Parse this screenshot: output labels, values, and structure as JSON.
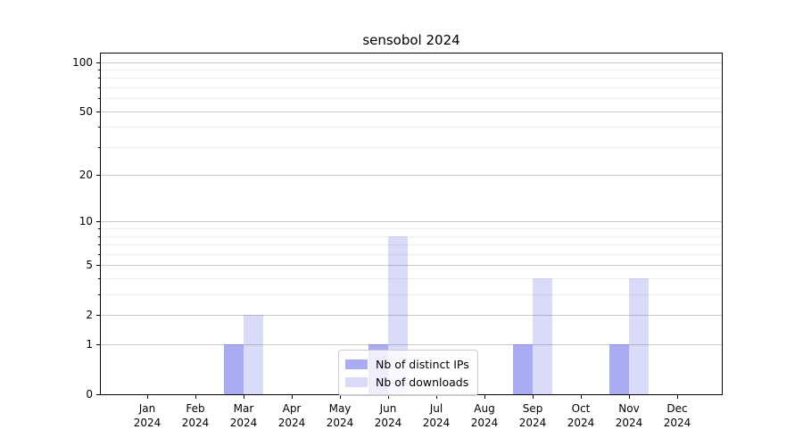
{
  "title": "sensobol 2024",
  "colors": {
    "bar_distinct_ips": "rgba(88,88,228,0.50)",
    "bar_downloads": "rgba(88,88,228,0.22)",
    "grid_major": "#c9c9c9",
    "grid_minor": "#ededed",
    "axis": "#000000",
    "legend_border": "#cccccc"
  },
  "chart_data": {
    "type": "bar",
    "title": "sensobol 2024",
    "xlabel": "",
    "ylabel": "",
    "yscale": "log1p",
    "ylim": [
      0,
      115
    ],
    "grid": "both",
    "legend_position": "lower center",
    "categories": [
      "Jan 2024",
      "Feb 2024",
      "Mar 2024",
      "Apr 2024",
      "May 2024",
      "Jun 2024",
      "Jul 2024",
      "Aug 2024",
      "Sep 2024",
      "Oct 2024",
      "Nov 2024",
      "Dec 2024"
    ],
    "x_tick_line1": [
      "Jan",
      "Feb",
      "Mar",
      "Apr",
      "May",
      "Jun",
      "Jul",
      "Aug",
      "Sep",
      "Oct",
      "Nov",
      "Dec"
    ],
    "x_tick_line2": [
      "2024",
      "2024",
      "2024",
      "2024",
      "2024",
      "2024",
      "2024",
      "2024",
      "2024",
      "2024",
      "2024",
      "2024"
    ],
    "y_major_ticks": [
      0,
      1,
      2,
      5,
      10,
      20,
      50,
      100
    ],
    "y_minor_ticks": [
      3,
      4,
      6,
      7,
      8,
      9,
      30,
      40,
      60,
      70,
      80,
      90
    ],
    "series": [
      {
        "name": "Nb of distinct IPs",
        "values": [
          0,
          0,
          1,
          0,
          0,
          1,
          0,
          0,
          1,
          0,
          1,
          0
        ]
      },
      {
        "name": "Nb of downloads",
        "values": [
          0,
          0,
          2,
          0,
          0,
          8,
          0,
          0,
          4,
          0,
          4,
          0
        ]
      }
    ]
  }
}
